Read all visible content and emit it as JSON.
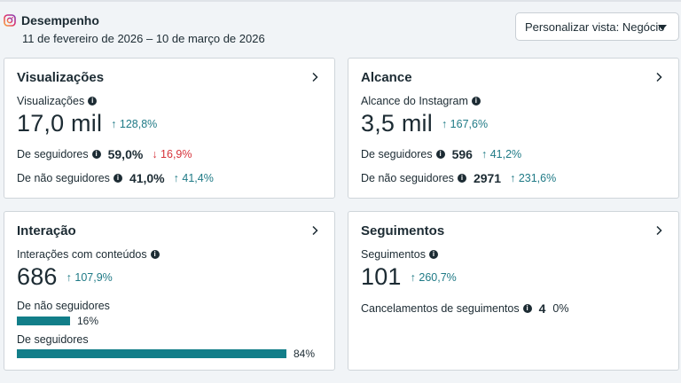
{
  "header": {
    "title": "Desempenho",
    "date_range": "11 de fevereiro de 2026 – 10 de março de 2026"
  },
  "view_select": {
    "label": "Personalizar vista: Negócio"
  },
  "cards": {
    "views": {
      "title": "Visualizações",
      "metric_label": "Visualizações",
      "metric_value": "17,0 mil",
      "metric_change": "↑ 128,8%",
      "rows": [
        {
          "label": "De seguidores",
          "value": "59,0%",
          "change": "↓ 16,9%",
          "direction": "down"
        },
        {
          "label": "De não seguidores",
          "value": "41,0%",
          "change": "↑ 41,4%",
          "direction": "up"
        }
      ]
    },
    "reach": {
      "title": "Alcance",
      "metric_label": "Alcance do Instagram",
      "metric_value": "3,5 mil",
      "metric_change": "↑ 167,6%",
      "rows": [
        {
          "label": "De seguidores",
          "value": "596",
          "change": "↑ 41,2%",
          "direction": "up"
        },
        {
          "label": "De não seguidores",
          "value": "2971",
          "change": "↑ 231,6%",
          "direction": "up"
        }
      ]
    },
    "interaction": {
      "title": "Interação",
      "metric_label": "Interações com conteúdos",
      "metric_value": "686",
      "metric_change": "↑ 107,9%",
      "bars": [
        {
          "label": "De não seguidores",
          "pct_label": "16%",
          "fraction": 0.16
        },
        {
          "label": "De seguidores",
          "pct_label": "84%",
          "fraction": 0.84
        }
      ]
    },
    "follows": {
      "title": "Seguimentos",
      "metric_label": "Seguimentos",
      "metric_value": "101",
      "metric_change": "↑ 260,7%",
      "unfollow_label": "Cancelamentos de seguimentos",
      "unfollow_value": "4",
      "unfollow_change": "0%"
    }
  },
  "colors": {
    "up": "#1f7a86",
    "down": "#d6323a",
    "bar": "#127e89"
  },
  "icons": {
    "brand": "instagram-icon",
    "info": "info-icon",
    "chevron": "chevron-right-icon",
    "caret": "caret-down-icon"
  }
}
